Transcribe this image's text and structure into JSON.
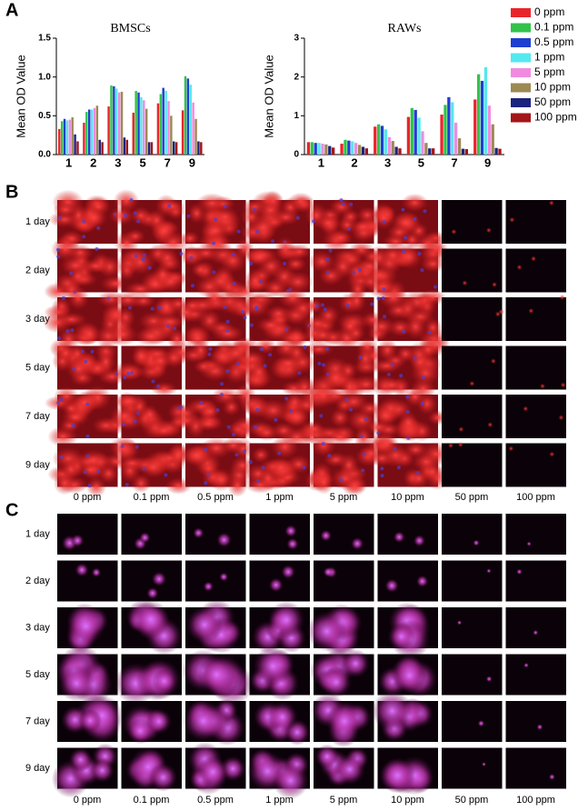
{
  "panel_labels": [
    "A",
    "B",
    "C"
  ],
  "chart_data": [
    {
      "type": "bar",
      "title": "BMSCs",
      "y_label": "Mean OD Value",
      "categories": [
        "1",
        "2",
        "3",
        "5",
        "7",
        "9"
      ],
      "ylim": [
        0,
        1.5
      ],
      "yticks": [
        {
          "value": 0,
          "label": "0.0"
        },
        {
          "value": 0.5,
          "label": "0.5"
        },
        {
          "value": 1,
          "label": "1.0"
        },
        {
          "value": 1.5,
          "label": "1.5"
        }
      ],
      "series": [
        {
          "name": "0 ppm",
          "color": "#e8262a",
          "values": [
            0.33,
            0.41,
            0.62,
            0.54,
            0.66,
            0.57
          ]
        },
        {
          "name": "0.1 ppm",
          "color": "#33c24a",
          "values": [
            0.43,
            0.55,
            0.89,
            0.82,
            0.78,
            1.01
          ]
        },
        {
          "name": "0.5 ppm",
          "color": "#1e3fd0",
          "values": [
            0.46,
            0.58,
            0.88,
            0.8,
            0.86,
            0.98
          ]
        },
        {
          "name": "1 ppm",
          "color": "#55e8f0",
          "values": [
            0.44,
            0.58,
            0.85,
            0.74,
            0.82,
            0.9
          ]
        },
        {
          "name": "5 ppm",
          "color": "#f08be0",
          "values": [
            0.45,
            0.6,
            0.8,
            0.7,
            0.69,
            0.67
          ]
        },
        {
          "name": "10 ppm",
          "color": "#9c8a55",
          "values": [
            0.48,
            0.63,
            0.81,
            0.59,
            0.5,
            0.46
          ]
        },
        {
          "name": "50 ppm",
          "color": "#1a237e",
          "values": [
            0.26,
            0.19,
            0.22,
            0.16,
            0.17,
            0.17
          ]
        },
        {
          "name": "100 ppm",
          "color": "#a3161a",
          "values": [
            0.17,
            0.16,
            0.19,
            0.16,
            0.16,
            0.16
          ]
        }
      ]
    },
    {
      "type": "bar",
      "title": "RAWs",
      "y_label": "Mean OD Value",
      "categories": [
        "1",
        "2",
        "3",
        "5",
        "7",
        "9"
      ],
      "ylim": [
        0,
        3
      ],
      "yticks": [
        0,
        1,
        2,
        3
      ],
      "series": [
        {
          "color": "#e8262a",
          "values": [
            0.32,
            0.28,
            0.72,
            0.97,
            1.03,
            1.42
          ]
        },
        {
          "color": "#33c24a",
          "values": [
            0.32,
            0.38,
            0.78,
            1.2,
            1.28,
            2.07
          ]
        },
        {
          "color": "#1e3fd0",
          "values": [
            0.3,
            0.36,
            0.74,
            1.15,
            1.48,
            1.9
          ]
        },
        {
          "color": "#55e8f0",
          "values": [
            0.3,
            0.34,
            0.65,
            0.95,
            1.35,
            2.25
          ]
        },
        {
          "color": "#f08be0",
          "values": [
            0.28,
            0.3,
            0.45,
            0.6,
            0.82,
            1.26
          ]
        },
        {
          "color": "#9c8a55",
          "values": [
            0.26,
            0.25,
            0.35,
            0.3,
            0.42,
            0.78
          ]
        },
        {
          "color": "#1a237e",
          "values": [
            0.22,
            0.2,
            0.2,
            0.16,
            0.15,
            0.17
          ]
        },
        {
          "color": "#a3161a",
          "values": [
            0.18,
            0.16,
            0.16,
            0.16,
            0.14,
            0.15
          ]
        }
      ]
    }
  ],
  "image_panels": [
    {
      "rows": [
        "1 day",
        "2 day",
        "3 day",
        "5 day",
        "7 day",
        "9 day"
      ],
      "columns": [
        "0 ppm",
        "0.1 ppm",
        "0.5 ppm",
        "1 ppm",
        "5 ppm",
        "10 ppm",
        "50 ppm",
        "100 ppm"
      ]
    },
    {
      "rows": [
        "1 day",
        "2 day",
        "3 day",
        "5 day",
        "7 day",
        "9 day"
      ],
      "columns": [
        "0 ppm",
        "0.1 ppm",
        "0.5 ppm",
        "1 ppm",
        "5 ppm",
        "10 ppm",
        "50 ppm",
        "100 ppm"
      ]
    }
  ]
}
